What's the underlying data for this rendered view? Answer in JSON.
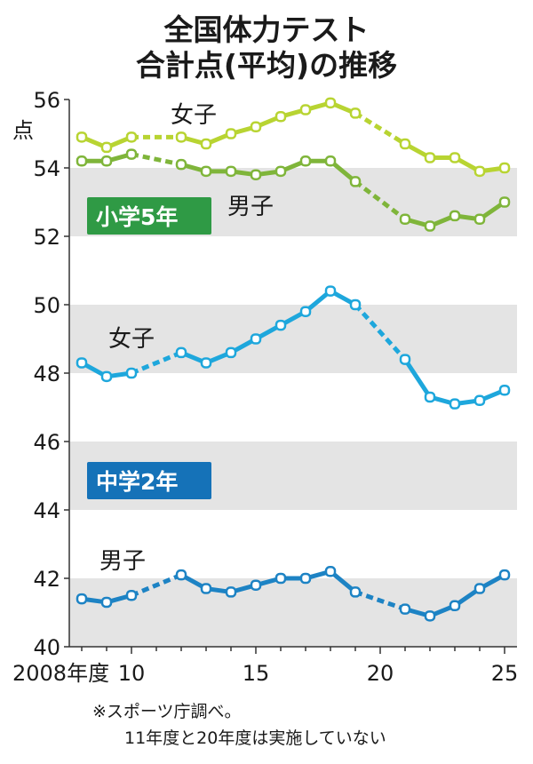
{
  "title_line1": "全国体力テスト",
  "title_line2": "合計点(平均)の推移",
  "unit": "点",
  "note_line1": "※スポーツ庁調べ。",
  "note_line2": "11年度と20年度は実施していない",
  "badges": {
    "elementary": "小学5年",
    "junior": "中学2年"
  },
  "colors": {
    "elem_girls": "#b8d432",
    "elem_boys": "#7fb53a",
    "badge_elem": "#2f9a45",
    "junior_line": "#1ea7dc",
    "junior_boys_line": "#1d83c4",
    "badge_junior": "#1572b8",
    "band": "#e4e4e4"
  },
  "chart_data": {
    "type": "line",
    "x_tick_labels": [
      {
        "x": 2008,
        "label": "2008年度"
      },
      {
        "x": 2010,
        "label": "10"
      },
      {
        "x": 2015,
        "label": "15"
      },
      {
        "x": 2020,
        "label": "20"
      },
      {
        "x": 2025,
        "label": "25"
      }
    ],
    "y_ticks": [
      40,
      42,
      44,
      46,
      48,
      50,
      52,
      54,
      56
    ],
    "xlim": [
      2007.5,
      2025.5
    ],
    "ylim": [
      40,
      56
    ],
    "missing_years": [
      2011,
      2020
    ],
    "series": [
      {
        "id": "elem_girls",
        "name": "女子",
        "group": "小学5年",
        "color": "#b8d432",
        "x": [
          2008,
          2009,
          2010,
          2012,
          2013,
          2014,
          2015,
          2016,
          2017,
          2018,
          2019,
          2021,
          2022,
          2023,
          2024,
          2025
        ],
        "values": [
          54.9,
          54.6,
          54.9,
          54.9,
          54.7,
          55.0,
          55.2,
          55.5,
          55.7,
          55.9,
          55.6,
          54.7,
          54.3,
          54.3,
          53.9,
          54.0
        ]
      },
      {
        "id": "elem_boys",
        "name": "男子",
        "group": "小学5年",
        "color": "#7fb53a",
        "x": [
          2008,
          2009,
          2010,
          2012,
          2013,
          2014,
          2015,
          2016,
          2017,
          2018,
          2019,
          2021,
          2022,
          2023,
          2024,
          2025
        ],
        "values": [
          54.2,
          54.2,
          54.4,
          54.1,
          53.9,
          53.9,
          53.8,
          53.9,
          54.2,
          54.2,
          53.6,
          52.5,
          52.3,
          52.6,
          52.5,
          53.0
        ]
      },
      {
        "id": "jr_girls",
        "name": "女子",
        "group": "中学2年",
        "color": "#1ea7dc",
        "x": [
          2008,
          2009,
          2010,
          2012,
          2013,
          2014,
          2015,
          2016,
          2017,
          2018,
          2019,
          2021,
          2022,
          2023,
          2024,
          2025
        ],
        "values": [
          48.3,
          47.9,
          48.0,
          48.6,
          48.3,
          48.6,
          49.0,
          49.4,
          49.8,
          50.4,
          50.0,
          48.4,
          47.3,
          47.1,
          47.2,
          47.5
        ]
      },
      {
        "id": "jr_boys",
        "name": "男子",
        "group": "中学2年",
        "color": "#1d83c4",
        "x": [
          2008,
          2009,
          2010,
          2012,
          2013,
          2014,
          2015,
          2016,
          2017,
          2018,
          2019,
          2021,
          2022,
          2023,
          2024,
          2025
        ],
        "values": [
          41.4,
          41.3,
          41.5,
          42.1,
          41.7,
          41.6,
          41.8,
          42.0,
          42.0,
          42.2,
          41.6,
          41.1,
          40.9,
          41.2,
          41.7,
          42.1
        ]
      }
    ],
    "grid_bands": [
      [
        52,
        54
      ],
      [
        48,
        50
      ],
      [
        44,
        46
      ],
      [
        40,
        42
      ]
    ]
  }
}
